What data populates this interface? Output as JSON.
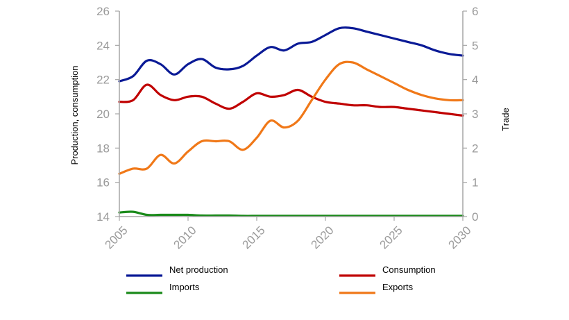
{
  "chart_data": {
    "type": "line",
    "xlabel": "",
    "ylabel": "Production, consumption",
    "y2label": "Trade",
    "xlim": [
      2005,
      2030
    ],
    "ylim": [
      14,
      26
    ],
    "y2lim": [
      0,
      6
    ],
    "xticks": [
      "2005",
      "2010",
      "2015",
      "2020",
      "2025",
      "2030"
    ],
    "yticks": [
      "14",
      "16",
      "18",
      "20",
      "22",
      "24",
      "26"
    ],
    "y2ticks": [
      "0",
      "1",
      "2",
      "3",
      "4",
      "5",
      "6"
    ],
    "grid": false,
    "legend_position": "bottom",
    "x": [
      2005,
      2006,
      2007,
      2008,
      2009,
      2010,
      2011,
      2012,
      2013,
      2014,
      2015,
      2016,
      2017,
      2018,
      2019,
      2020,
      2021,
      2022,
      2023,
      2024,
      2025,
      2026,
      2027,
      2028,
      2029,
      2030
    ],
    "series": [
      {
        "name": "Net production",
        "axis": "left",
        "color": "#0a1a96",
        "values": [
          21.9,
          22.2,
          23.1,
          22.9,
          22.3,
          22.9,
          23.2,
          22.7,
          22.6,
          22.8,
          23.4,
          23.9,
          23.7,
          24.1,
          24.2,
          24.6,
          25.0,
          25.0,
          24.8,
          24.6,
          24.4,
          24.2,
          24.0,
          23.7,
          23.5,
          23.4
        ]
      },
      {
        "name": "Consumption",
        "axis": "left",
        "color": "#c00000",
        "values": [
          20.7,
          20.8,
          21.7,
          21.1,
          20.8,
          21.0,
          21.0,
          20.6,
          20.3,
          20.7,
          21.2,
          21.0,
          21.1,
          21.4,
          21.0,
          20.7,
          20.6,
          20.5,
          20.5,
          20.4,
          20.4,
          20.3,
          20.2,
          20.1,
          20.0,
          19.9
        ]
      },
      {
        "name": "Imports",
        "axis": "right",
        "color": "#1a8a1a",
        "values": [
          0.12,
          0.14,
          0.05,
          0.05,
          0.05,
          0.05,
          0.03,
          0.03,
          0.03,
          0.02,
          0.02,
          0.02,
          0.02,
          0.02,
          0.02,
          0.02,
          0.02,
          0.02,
          0.02,
          0.02,
          0.02,
          0.02,
          0.02,
          0.02,
          0.02,
          0.02
        ]
      },
      {
        "name": "Exports",
        "axis": "right",
        "color": "#f07818",
        "values": [
          1.25,
          1.4,
          1.4,
          1.8,
          1.55,
          1.9,
          2.2,
          2.2,
          2.2,
          1.95,
          2.3,
          2.8,
          2.6,
          2.8,
          3.4,
          4.0,
          4.45,
          4.5,
          4.3,
          4.1,
          3.9,
          3.7,
          3.55,
          3.45,
          3.4,
          3.4
        ]
      }
    ]
  }
}
